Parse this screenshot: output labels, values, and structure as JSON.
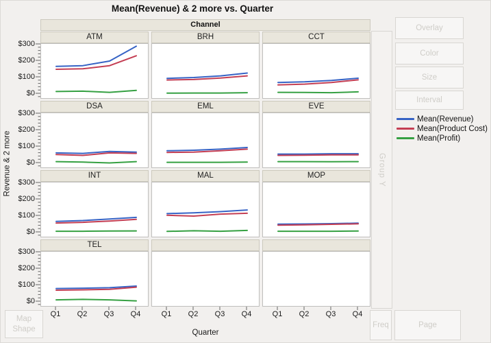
{
  "title": "Mean(Revenue) & 2 more vs. Quarter",
  "facet_band_label": "Channel",
  "y_axis_title": "Revenue & 2 more",
  "x_axis_title": "Quarter",
  "drop_zones": {
    "overlay": "Overlay",
    "color": "Color",
    "size": "Size",
    "interval": "Interval",
    "group_y": "Group Y",
    "freq": "Freq",
    "page": "Page",
    "map_shape_line1": "Map",
    "map_shape_line2": "Shape"
  },
  "ui_colors": {
    "facet_header_fill": "#e9e6dc",
    "disabled_text": "#cfcdc8"
  },
  "chart_data": {
    "type": "line",
    "x": [
      "Q1",
      "Q2",
      "Q3",
      "Q4"
    ],
    "xlabel": "Quarter",
    "ylabel": "Revenue & 2 more",
    "ylim": [
      0,
      300
    ],
    "y_tick_labels": [
      "$300",
      "$200",
      "$100",
      "$0"
    ],
    "grid": false,
    "legend_position": "right",
    "facet": {
      "label": "Channel",
      "columns": 3,
      "rows": 4
    },
    "series": [
      {
        "name": "Mean(Revenue)",
        "color": "#3663c5"
      },
      {
        "name": "Mean(Product Cost)",
        "color": "#c43e53"
      },
      {
        "name": "Mean(Profit)",
        "color": "#35a042"
      }
    ],
    "panels": [
      {
        "channel": "ATM",
        "values": {
          "Mean(Revenue)": [
            168,
            172,
            200,
            290
          ],
          "Mean(Product Cost)": [
            150,
            153,
            172,
            232
          ],
          "Mean(Profit)": [
            15,
            17,
            10,
            22
          ]
        }
      },
      {
        "channel": "BRH",
        "values": {
          "Mean(Revenue)": [
            95,
            100,
            110,
            127
          ],
          "Mean(Product Cost)": [
            85,
            88,
            97,
            110
          ],
          "Mean(Profit)": [
            5,
            6,
            6,
            8
          ]
        }
      },
      {
        "channel": "CCT",
        "values": {
          "Mean(Revenue)": [
            70,
            74,
            82,
            96
          ],
          "Mean(Product Cost)": [
            55,
            60,
            70,
            86
          ],
          "Mean(Profit)": [
            10,
            9,
            8,
            13
          ]
        }
      },
      {
        "channel": "DSA",
        "values": {
          "Mean(Revenue)": [
            63,
            60,
            72,
            68
          ],
          "Mean(Product Cost)": [
            53,
            48,
            63,
            60
          ],
          "Mean(Profit)": [
            10,
            7,
            2,
            10
          ]
        }
      },
      {
        "channel": "EML",
        "values": {
          "Mean(Revenue)": [
            76,
            79,
            86,
            96
          ],
          "Mean(Product Cost)": [
            66,
            68,
            76,
            86
          ],
          "Mean(Profit)": [
            6,
            6,
            6,
            7
          ]
        }
      },
      {
        "channel": "EVE",
        "values": {
          "Mean(Revenue)": [
            56,
            56,
            58,
            58
          ],
          "Mean(Product Cost)": [
            48,
            49,
            51,
            51
          ],
          "Mean(Profit)": [
            10,
            10,
            9,
            10
          ]
        }
      },
      {
        "channel": "INT",
        "values": {
          "Mean(Revenue)": [
            68,
            73,
            82,
            92
          ],
          "Mean(Product Cost)": [
            58,
            62,
            70,
            80
          ],
          "Mean(Profit)": [
            8,
            8,
            9,
            10
          ]
        }
      },
      {
        "channel": "MAL",
        "values": {
          "Mean(Revenue)": [
            115,
            120,
            127,
            137
          ],
          "Mean(Product Cost)": [
            105,
            100,
            112,
            117
          ],
          "Mean(Profit)": [
            7,
            11,
            8,
            13
          ]
        }
      },
      {
        "channel": "MOP",
        "values": {
          "Mean(Revenue)": [
            51,
            52,
            54,
            57
          ],
          "Mean(Product Cost)": [
            45,
            47,
            50,
            53
          ],
          "Mean(Profit)": [
            8,
            8,
            8,
            9
          ]
        }
      },
      {
        "channel": "TEL",
        "values": {
          "Mean(Revenue)": [
            81,
            83,
            86,
            96
          ],
          "Mean(Product Cost)": [
            71,
            73,
            76,
            89
          ],
          "Mean(Profit)": [
            12,
            15,
            12,
            6
          ]
        }
      },
      {
        "channel": "",
        "values": null
      },
      {
        "channel": "",
        "values": null
      }
    ]
  }
}
